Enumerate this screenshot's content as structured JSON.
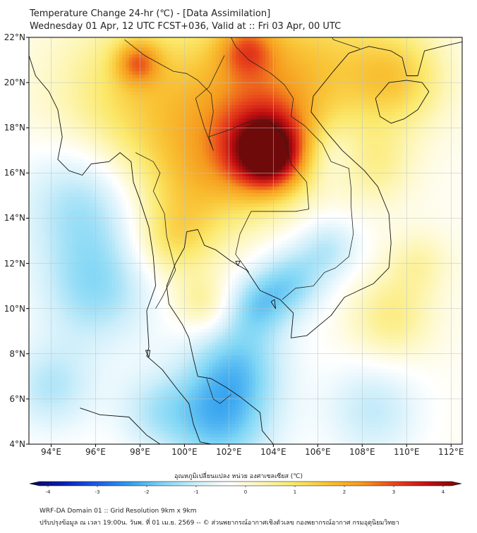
{
  "header": {
    "title_line1": "Temperature Change 24-hr (℃) - [Data Assimilation]",
    "title_line2": "Wednesday 01 Apr, 12 UTC FCST+036, Valid at :: Fri 03 Apr, 00 UTC"
  },
  "axes": {
    "lat_labels": [
      "22°N",
      "20°N",
      "18°N",
      "16°N",
      "14°N",
      "12°N",
      "10°N",
      "8°N",
      "6°N",
      "4°N"
    ],
    "lon_labels": [
      "94°E",
      "96°E",
      "98°E",
      "100°E",
      "102°E",
      "104°E",
      "106°E",
      "108°E",
      "110°E",
      "112°E"
    ],
    "lat_range": [
      4,
      22
    ],
    "lon_range": [
      93,
      112.5
    ]
  },
  "colorbar": {
    "title": "อุณหภูมิเปลี่ยนแปลง หน่วย องศาเซลเซียส (℃)",
    "ticks": [
      "-4",
      "-3",
      "-2",
      "-1",
      "0",
      "1",
      "2",
      "3",
      "4"
    ],
    "min": -4,
    "max": 4,
    "colors": [
      "#08045e",
      "#0a1fb5",
      "#1f5ae6",
      "#2f9ef0",
      "#7fd6f5",
      "#cdeefa",
      "#ffffff",
      "#fdf6b8",
      "#fbe86a",
      "#f9c234",
      "#f59a1e",
      "#e8431c",
      "#c40f12",
      "#6e0a0a"
    ]
  },
  "field": {
    "base_value": -0.2,
    "blobs": [
      {
        "lon": 103.8,
        "lat": 16.8,
        "amp": 3.0,
        "r": 1.1
      },
      {
        "lon": 103.5,
        "lat": 17.5,
        "amp": 1.6,
        "r": 1.8
      },
      {
        "lon": 97.9,
        "lat": 20.9,
        "amp": 1.6,
        "r": 0.7
      },
      {
        "lon": 102.8,
        "lat": 21.5,
        "amp": 1.5,
        "r": 0.9
      },
      {
        "lon": 98.0,
        "lat": 19.0,
        "amp": 1.3,
        "r": 2.8
      },
      {
        "lon": 103.0,
        "lat": 19.5,
        "amp": 1.2,
        "r": 2.8
      },
      {
        "lon": 109.5,
        "lat": 20.2,
        "amp": 1.4,
        "r": 1.6
      },
      {
        "lon": 106.0,
        "lat": 21.2,
        "amp": 0.9,
        "r": 2.2
      },
      {
        "lon": 100.5,
        "lat": 15.2,
        "amp": 1.0,
        "r": 1.9
      },
      {
        "lon": 99.5,
        "lat": 13.0,
        "amp": 0.9,
        "r": 1.2
      },
      {
        "lon": 100.8,
        "lat": 10.2,
        "amp": 0.8,
        "r": 0.9
      },
      {
        "lon": 109.3,
        "lat": 9.6,
        "amp": 0.9,
        "r": 1.3
      },
      {
        "lon": 108.6,
        "lat": 16.3,
        "amp": 0.7,
        "r": 1.2
      },
      {
        "lon": 110.5,
        "lat": 12.0,
        "amp": 0.6,
        "r": 1.0
      },
      {
        "lon": 95.5,
        "lat": 14.8,
        "amp": -1.2,
        "r": 2.0
      },
      {
        "lon": 96.0,
        "lat": 10.8,
        "amp": -1.1,
        "r": 1.8
      },
      {
        "lon": 101.5,
        "lat": 5.2,
        "amp": -1.6,
        "r": 1.8
      },
      {
        "lon": 102.5,
        "lat": 7.8,
        "amp": -1.0,
        "r": 1.5
      },
      {
        "lon": 104.8,
        "lat": 11.2,
        "amp": -1.1,
        "r": 1.1
      },
      {
        "lon": 103.3,
        "lat": 10.2,
        "amp": -1.0,
        "r": 1.0
      },
      {
        "lon": 106.5,
        "lat": 12.7,
        "amp": -0.8,
        "r": 1.0
      },
      {
        "lon": 94.0,
        "lat": 6.5,
        "amp": -0.9,
        "r": 1.4
      },
      {
        "lon": 108.5,
        "lat": 5.5,
        "amp": -0.8,
        "r": 1.5
      },
      {
        "lon": 106.5,
        "lat": 16.8,
        "amp": -0.6,
        "r": 1.0
      },
      {
        "lon": 98.5,
        "lat": 5.5,
        "amp": -0.6,
        "r": 1.2
      }
    ]
  },
  "coastlines": {
    "mainland": [
      [
        93.0,
        21.2
      ],
      [
        93.3,
        20.3
      ],
      [
        93.9,
        19.6
      ],
      [
        94.3,
        18.8
      ],
      [
        94.5,
        17.6
      ],
      [
        94.3,
        16.6
      ],
      [
        94.8,
        16.1
      ],
      [
        95.4,
        15.9
      ],
      [
        95.8,
        16.4
      ],
      [
        96.6,
        16.5
      ],
      [
        97.1,
        16.9
      ],
      [
        97.6,
        16.5
      ],
      [
        97.7,
        15.6
      ],
      [
        98.0,
        14.8
      ],
      [
        98.4,
        13.6
      ],
      [
        98.6,
        12.3
      ],
      [
        98.7,
        11.0
      ],
      [
        98.3,
        9.9
      ],
      [
        98.4,
        8.3
      ],
      [
        98.3,
        7.9
      ],
      [
        99.0,
        7.3
      ],
      [
        99.7,
        6.4
      ],
      [
        100.2,
        5.8
      ],
      [
        100.4,
        4.9
      ],
      [
        100.7,
        4.1
      ],
      [
        101.2,
        4.0
      ]
    ],
    "gulf_side": [
      [
        104.0,
        4.0
      ],
      [
        103.5,
        4.6
      ],
      [
        103.4,
        5.4
      ],
      [
        102.5,
        6.1
      ],
      [
        101.9,
        6.5
      ],
      [
        101.2,
        6.9
      ],
      [
        100.6,
        7.0
      ],
      [
        100.4,
        7.8
      ],
      [
        100.2,
        8.7
      ],
      [
        99.9,
        9.3
      ],
      [
        99.3,
        10.2
      ],
      [
        99.2,
        11.0
      ],
      [
        99.6,
        12.0
      ],
      [
        100.0,
        12.7
      ],
      [
        100.1,
        13.4
      ],
      [
        100.6,
        13.5
      ],
      [
        100.9,
        12.8
      ],
      [
        101.4,
        12.6
      ],
      [
        102.1,
        12.1
      ],
      [
        102.8,
        11.7
      ],
      [
        103.4,
        10.8
      ],
      [
        104.3,
        10.4
      ],
      [
        104.9,
        9.8
      ],
      [
        104.8,
        8.7
      ],
      [
        105.5,
        8.8
      ],
      [
        106.6,
        9.7
      ],
      [
        107.2,
        10.5
      ],
      [
        108.5,
        11.1
      ],
      [
        109.2,
        11.8
      ],
      [
        109.3,
        12.9
      ],
      [
        109.2,
        14.2
      ],
      [
        108.7,
        15.4
      ],
      [
        108.1,
        16.1
      ],
      [
        107.1,
        17.0
      ],
      [
        106.4,
        17.8
      ],
      [
        105.7,
        18.7
      ],
      [
        105.8,
        19.4
      ],
      [
        106.7,
        20.5
      ],
      [
        107.4,
        21.3
      ],
      [
        108.3,
        21.6
      ],
      [
        109.3,
        21.4
      ],
      [
        109.8,
        21.1
      ],
      [
        110.0,
        20.3
      ],
      [
        110.5,
        20.3
      ],
      [
        110.8,
        21.4
      ],
      [
        111.6,
        21.6
      ],
      [
        112.5,
        21.8
      ]
    ],
    "hainan": [
      [
        108.6,
        19.3
      ],
      [
        109.2,
        20.0
      ],
      [
        110.0,
        20.1
      ],
      [
        110.7,
        20.0
      ],
      [
        111.0,
        19.6
      ],
      [
        110.5,
        18.8
      ],
      [
        109.9,
        18.4
      ],
      [
        109.3,
        18.2
      ],
      [
        108.8,
        18.5
      ],
      [
        108.6,
        19.3
      ]
    ],
    "sumatra": [
      [
        95.3,
        5.6
      ],
      [
        96.2,
        5.3
      ],
      [
        97.5,
        5.2
      ],
      [
        98.3,
        4.4
      ],
      [
        98.9,
        4.0
      ]
    ],
    "island1": [
      [
        98.25,
        8.15
      ],
      [
        98.4,
        7.85
      ],
      [
        98.45,
        8.15
      ],
      [
        98.25,
        8.15
      ]
    ],
    "island2": [
      [
        102.3,
        12.1
      ],
      [
        102.4,
        11.9
      ],
      [
        102.5,
        12.1
      ],
      [
        102.3,
        12.1
      ]
    ],
    "island3": [
      [
        103.9,
        10.3
      ],
      [
        104.1,
        10.0
      ],
      [
        104.05,
        10.4
      ],
      [
        103.9,
        10.3
      ]
    ]
  },
  "borders": [
    [
      [
        97.3,
        21.9
      ],
      [
        98.2,
        21.2
      ],
      [
        99.5,
        20.5
      ],
      [
        100.1,
        20.4
      ],
      [
        100.6,
        20.1
      ],
      [
        101.2,
        19.5
      ],
      [
        101.3,
        18.7
      ],
      [
        101.1,
        17.6
      ],
      [
        102.0,
        17.9
      ],
      [
        103.0,
        18.3
      ],
      [
        103.8,
        18.3
      ],
      [
        104.5,
        17.6
      ],
      [
        104.8,
        16.4
      ],
      [
        105.5,
        15.6
      ],
      [
        105.6,
        14.4
      ],
      [
        105.0,
        14.3
      ],
      [
        104.0,
        14.3
      ],
      [
        103.0,
        14.3
      ],
      [
        102.5,
        13.3
      ],
      [
        102.3,
        12.4
      ],
      [
        102.9,
        11.6
      ]
    ],
    [
      [
        97.8,
        16.9
      ],
      [
        98.6,
        16.5
      ],
      [
        98.9,
        16.0
      ],
      [
        98.6,
        15.2
      ],
      [
        99.1,
        14.2
      ],
      [
        99.2,
        13.2
      ],
      [
        99.6,
        11.7
      ],
      [
        99.0,
        10.5
      ],
      [
        98.7,
        10.0
      ]
    ],
    [
      [
        101.1,
        17.6
      ],
      [
        101.3,
        17.0
      ],
      [
        100.9,
        18.0
      ],
      [
        100.5,
        19.3
      ],
      [
        101.1,
        19.8
      ],
      [
        101.8,
        21.2
      ]
    ],
    [
      [
        101.9,
        22.4
      ],
      [
        102.3,
        21.6
      ],
      [
        102.9,
        21.0
      ],
      [
        103.9,
        20.4
      ],
      [
        104.5,
        19.9
      ],
      [
        104.9,
        19.3
      ],
      [
        104.8,
        18.5
      ],
      [
        105.4,
        18.1
      ],
      [
        106.2,
        17.3
      ],
      [
        106.6,
        16.5
      ],
      [
        107.4,
        16.2
      ],
      [
        107.5,
        15.3
      ],
      [
        107.5,
        14.5
      ],
      [
        107.6,
        13.3
      ],
      [
        107.4,
        12.3
      ],
      [
        106.8,
        11.8
      ],
      [
        106.3,
        11.6
      ],
      [
        105.8,
        11.0
      ],
      [
        105.0,
        10.9
      ],
      [
        104.4,
        10.4
      ]
    ],
    [
      [
        101.0,
        6.9
      ],
      [
        101.3,
        6.0
      ],
      [
        101.6,
        5.8
      ],
      [
        102.1,
        6.2
      ]
    ],
    [
      [
        104.4,
        22.6
      ],
      [
        105.4,
        22.9
      ],
      [
        106.4,
        22.4
      ],
      [
        106.7,
        21.9
      ],
      [
        107.9,
        21.5
      ]
    ]
  ]
}
